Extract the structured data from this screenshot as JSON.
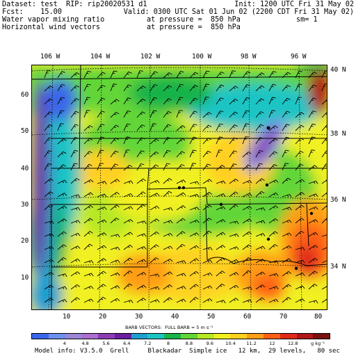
{
  "header": {
    "line1_left": "Dataset: test  RIP: rip20020531 d1",
    "line1_right": "Init: 1200 UTC Fri 31 May 02",
    "line2_left": "Fcst:    15.00",
    "line2_right": "Valid: 0300 UTC Sat 01 Jun 02 (2200 CDT Fri 31 May 02)",
    "line3_left": "Water vapor mixing ratio",
    "line3_mid": "at pressure =  850 hPa",
    "line3_right": "sm= 1",
    "line4_left": "Horizontal wind vectors",
    "line4_mid": "at pressure =  850 hPa"
  },
  "map": {
    "top_lon_labels": [
      "106 W",
      "104 W",
      "102 W",
      "100 W",
      "98 W",
      "96 W"
    ],
    "right_lat_labels": [
      "40 N",
      "38 N",
      "36 N",
      "34 N"
    ],
    "left_axis_labels": [
      "60",
      "50",
      "40",
      "30",
      "20",
      "10"
    ],
    "bottom_axis_labels": [
      "10",
      "20",
      "30",
      "40",
      "50",
      "60",
      "70",
      "80"
    ]
  },
  "legend": {
    "barb_caption": "BARB VECTORS:  FULL BARB = 5 m s⁻¹",
    "colorbar_ticks": [
      "4",
      "4.8",
      "5.6",
      "6.4",
      "7.2",
      "8",
      "8.8",
      "9.6",
      "10.4",
      "11.2",
      "12",
      "12.8",
      "g kg⁻¹"
    ],
    "colorbar_colors": [
      "#3a66e8",
      "#6f8ff0",
      "#9c86d8",
      "#a970d0",
      "#8d3db4",
      "#6a1fa0",
      "#1f9fd0",
      "#1ec4c4",
      "#19b34a",
      "#62d637",
      "#b6e825",
      "#f0f020",
      "#ffd020",
      "#ff9e18",
      "#ff6018",
      "#e02a1a",
      "#b01818",
      "#7a1010"
    ]
  },
  "footer": {
    "model_info": "Model info: V3.5.0  Grell     Blackadar  Simple ice   12 km,  29 levels,   80 sec"
  }
}
